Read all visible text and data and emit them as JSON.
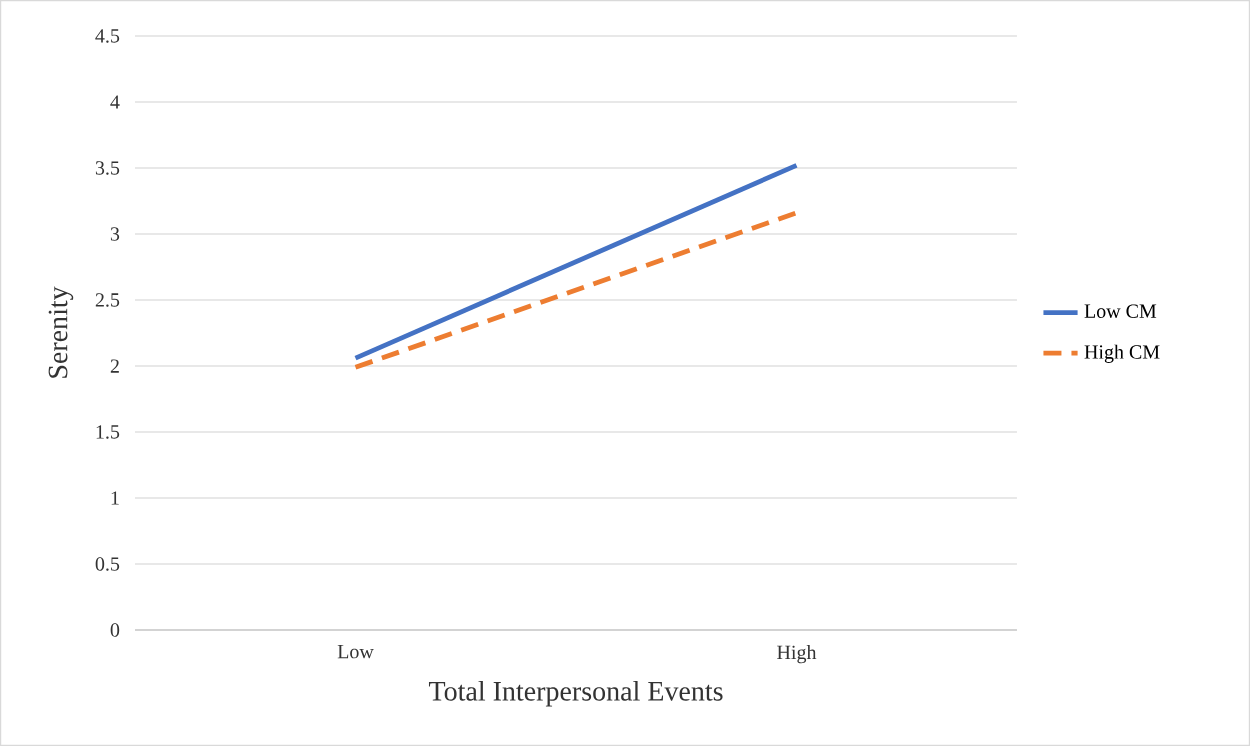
{
  "chart_data": {
    "type": "line",
    "xlabel": "Total Interpersonal Events",
    "ylabel": "Serenity",
    "categories": [
      "Low",
      "High"
    ],
    "series": [
      {
        "name": "Low CM",
        "color": "#4472c4",
        "values": [
          2.06,
          3.52
        ],
        "line_style": "solid"
      },
      {
        "name": "High CM",
        "color": "#ed7d31",
        "values": [
          1.99,
          3.16
        ],
        "line_style": "dashed"
      }
    ],
    "ylim": [
      0,
      4.5
    ],
    "yticks": [
      0,
      0.5,
      1,
      1.5,
      2,
      2.5,
      3,
      3.5,
      4,
      4.5
    ],
    "grid": "y",
    "legend": "right",
    "marker": "none"
  }
}
